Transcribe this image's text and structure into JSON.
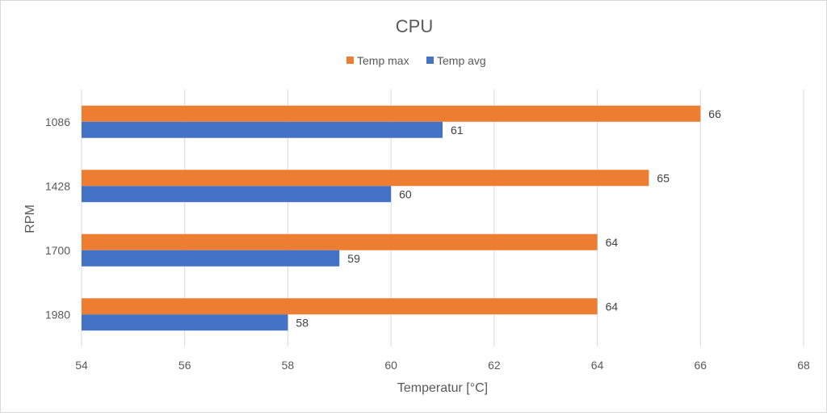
{
  "chart_data": {
    "type": "bar",
    "orientation": "horizontal",
    "title": "CPU",
    "xlabel": "Temperatur [°C]",
    "ylabel": "RPM",
    "xlim": [
      54,
      68
    ],
    "xticks": [
      54,
      56,
      58,
      60,
      62,
      64,
      66,
      68
    ],
    "categories": [
      "1086",
      "1428",
      "1700",
      "1980"
    ],
    "series": [
      {
        "name": "Temp max",
        "color": "#ed7d31",
        "values": [
          66,
          65,
          64,
          64
        ]
      },
      {
        "name": "Temp avg",
        "color": "#4472c4",
        "values": [
          61,
          60,
          59,
          58
        ]
      }
    ],
    "legend_position": "top",
    "grid": true
  }
}
